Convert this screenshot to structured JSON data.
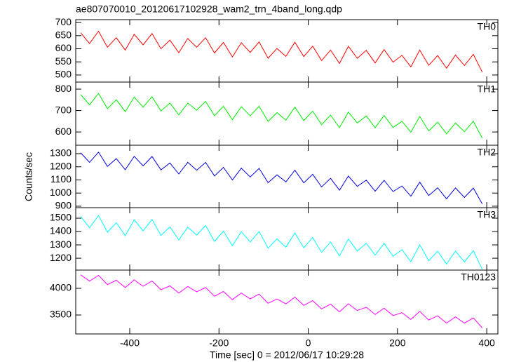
{
  "title": "ae807070010_20120617102928_wam2_trn_4band_long.qdp",
  "ylabel": "Counts/sec",
  "xlabel": "Time [sec] 0 = 2012/06/17 10:29:28",
  "chart_data": [
    {
      "type": "line",
      "label": "TH0",
      "color": "#ff0000",
      "x": [
        -510,
        -490,
        -470,
        -450,
        -430,
        -410,
        -390,
        -370,
        -350,
        -330,
        -310,
        -290,
        -270,
        -250,
        -230,
        -210,
        -190,
        -170,
        -150,
        -130,
        -110,
        -90,
        -70,
        -50,
        -30,
        -10,
        10,
        30,
        50,
        70,
        90,
        110,
        130,
        150,
        170,
        190,
        210,
        230,
        250,
        270,
        290,
        310,
        330,
        350,
        370,
        390
      ],
      "values": [
        661,
        620,
        667,
        606,
        642,
        595,
        655,
        615,
        658,
        600,
        633,
        585,
        639,
        606,
        642,
        584,
        624,
        569,
        623,
        586,
        626,
        564,
        601,
        571,
        625,
        570,
        610,
        555,
        595,
        544,
        609,
        564,
        594,
        546,
        597,
        549,
        575,
        531,
        595,
        537,
        574,
        526,
        576,
        536,
        579,
        511
      ],
      "xlim": [
        -521,
        425
      ],
      "ylim": [
        473,
        711
      ],
      "yticks": [
        500,
        550,
        600,
        650,
        700
      ],
      "xticks": [
        -400,
        -200,
        0,
        200,
        400
      ]
    },
    {
      "type": "line",
      "label": "TH1",
      "color": "#00ee00",
      "x": [
        -510,
        -490,
        -470,
        -450,
        -430,
        -410,
        -390,
        -370,
        -350,
        -330,
        -310,
        -290,
        -270,
        -250,
        -230,
        -210,
        -190,
        -170,
        -150,
        -130,
        -110,
        -90,
        -70,
        -50,
        -30,
        -10,
        10,
        30,
        50,
        70,
        90,
        110,
        130,
        150,
        170,
        190,
        210,
        230,
        250,
        270,
        290,
        310,
        330,
        350,
        370,
        390
      ],
      "values": [
        774,
        727,
        780,
        709,
        750,
        695,
        763,
        716,
        765,
        698,
        735,
        680,
        735,
        702,
        743,
        676,
        720,
        657,
        718,
        675,
        720,
        649,
        690,
        655,
        716,
        653,
        697,
        634,
        679,
        620,
        693,
        642,
        675,
        620,
        677,
        621,
        650,
        599,
        672,
        605,
        646,
        591,
        642,
        601,
        650,
        571
      ],
      "xlim": [
        -521,
        425
      ],
      "ylim": [
        538,
        833
      ],
      "yticks": [
        600,
        700,
        800
      ],
      "xticks": [
        -400,
        -200,
        0,
        200,
        400
      ]
    },
    {
      "type": "line",
      "label": "TH2",
      "color": "#0000dd",
      "x": [
        -510,
        -490,
        -470,
        -450,
        -430,
        -410,
        -390,
        -370,
        -350,
        -330,
        -310,
        -290,
        -270,
        -250,
        -230,
        -210,
        -190,
        -170,
        -150,
        -130,
        -110,
        -90,
        -70,
        -50,
        -30,
        -10,
        10,
        30,
        50,
        70,
        90,
        110,
        130,
        150,
        170,
        190,
        210,
        230,
        250,
        270,
        290,
        310,
        330,
        350,
        370,
        390
      ],
      "values": [
        1306,
        1234,
        1311,
        1203,
        1262,
        1178,
        1279,
        1207,
        1278,
        1176,
        1229,
        1145,
        1234,
        1174,
        1233,
        1130,
        1196,
        1100,
        1189,
        1122,
        1188,
        1079,
        1139,
        1085,
        1174,
        1078,
        1143,
        1047,
        1112,
        1022,
        1129,
        1051,
        1098,
        1014,
        1097,
        1012,
        1054,
        976,
        1083,
        981,
        1040,
        956,
        1039,
        967,
        1038,
        918
      ],
      "xlim": [
        -521,
        425
      ],
      "ylim": [
        889,
        1364
      ],
      "yticks": [
        900,
        1000,
        1100,
        1200,
        1300
      ],
      "xticks": [
        -400,
        -200,
        0,
        200,
        400
      ]
    },
    {
      "type": "line",
      "label": "TH3",
      "color": "#00ffff",
      "x": [
        -510,
        -490,
        -470,
        -450,
        -430,
        -410,
        -390,
        -370,
        -350,
        -330,
        -310,
        -290,
        -270,
        -250,
        -230,
        -210,
        -190,
        -170,
        -150,
        -130,
        -110,
        -90,
        -70,
        -50,
        -30,
        -10,
        10,
        30,
        50,
        70,
        90,
        110,
        130,
        150,
        170,
        190,
        210,
        230,
        250,
        270,
        290,
        310,
        330,
        350,
        370,
        390
      ],
      "values": [
        1512,
        1429,
        1520,
        1395,
        1466,
        1369,
        1488,
        1405,
        1490,
        1371,
        1435,
        1337,
        1433,
        1374,
        1445,
        1326,
        1404,
        1293,
        1399,
        1322,
        1400,
        1275,
        1345,
        1283,
        1389,
        1278,
        1355,
        1244,
        1322,
        1217,
        1344,
        1254,
        1312,
        1223,
        1312,
        1215,
        1264,
        1174,
        1301,
        1182,
        1253,
        1156,
        1254,
        1172,
        1256,
        1117
      ],
      "xlim": [
        -521,
        425
      ],
      "ylim": [
        1111,
        1579
      ],
      "yticks": [
        1200,
        1300,
        1400,
        1500
      ],
      "xticks": [
        -400,
        -200,
        0,
        200,
        400
      ]
    },
    {
      "type": "line",
      "label": "TH0123",
      "color": "#ff00ff",
      "x": [
        -510,
        -490,
        -470,
        -450,
        -430,
        -410,
        -390,
        -370,
        -350,
        -330,
        -310,
        -290,
        -270,
        -250,
        -230,
        -210,
        -190,
        -170,
        -150,
        -130,
        -110,
        -90,
        -70,
        -50,
        -30,
        -10,
        10,
        30,
        50,
        70,
        90,
        110,
        130,
        150,
        170,
        190,
        210,
        230,
        250,
        270,
        290,
        310,
        330,
        350,
        370,
        390
      ],
      "values": [
        4254,
        4136,
        4243,
        4071,
        4151,
        4015,
        4158,
        4040,
        4138,
        3975,
        4046,
        3910,
        4035,
        3935,
        4015,
        3852,
        3941,
        3787,
        3912,
        3803,
        3892,
        3720,
        3800,
        3709,
        3834,
        3680,
        3769,
        3615,
        3704,
        3559,
        3711,
        3584,
        3646,
        3510,
        3626,
        3490,
        3543,
        3416,
        3568,
        3405,
        3485,
        3349,
        3465,
        3347,
        3445,
        3255
      ],
      "xlim": [
        -521,
        425
      ],
      "ylim": [
        3145,
        4342
      ],
      "yticks": [
        3500,
        4000
      ],
      "xticks": [
        -400,
        -200,
        0,
        200,
        400
      ]
    }
  ]
}
